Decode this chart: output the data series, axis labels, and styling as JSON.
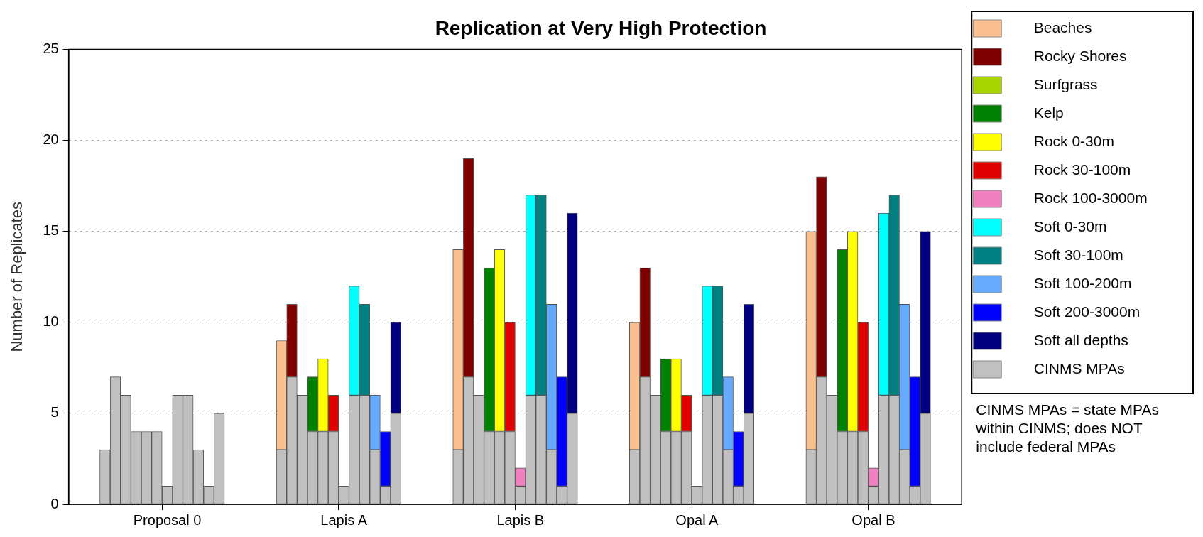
{
  "chart_data": {
    "type": "bar",
    "title": "Replication at Very High Protection",
    "ylabel": "Number of Replicates",
    "categories": [
      null,
      null,
      null,
      null,
      null,
      null,
      null,
      null,
      null,
      "Proposal 0",
      null,
      null,
      null,
      null,
      null,
      null,
      null,
      null,
      null,
      null,
      null,
      null,
      null,
      null,
      null,
      null,
      "Lapis A",
      null,
      null,
      null,
      null,
      null,
      null,
      null,
      null,
      null,
      null,
      null,
      null,
      null,
      null,
      null,
      null,
      "Lapis B",
      null,
      null,
      null,
      null,
      null,
      null,
      null,
      null,
      null,
      null,
      null,
      null,
      null,
      null,
      null,
      null,
      "Opal A",
      null,
      null,
      null,
      null,
      null,
      null,
      null,
      null,
      null,
      null,
      null,
      null,
      null,
      null,
      null,
      null,
      "Opal B",
      null,
      null,
      null,
      null,
      null,
      null,
      null,
      null
    ],
    "ylim": [
      0,
      25
    ],
    "yticks": [
      0,
      5,
      10,
      15,
      20,
      25
    ],
    "grid": "y",
    "stacked": true,
    "legend": "right",
    "annotations": [
      "CINMS MPAs = state MPAs within CINMS; does NOT include federal MPAs"
    ],
    "series": [
      {
        "name": "CINMS MPAs",
        "color": "#c0c0c0",
        "values": [
          null,
          null,
          null,
          3,
          7,
          6,
          4,
          4,
          4,
          1,
          6,
          6,
          3,
          1,
          5,
          null,
          null,
          null,
          null,
          null,
          3,
          7,
          6,
          4,
          4,
          4,
          1,
          6,
          6,
          3,
          1,
          5,
          null,
          null,
          null,
          null,
          null,
          3,
          7,
          6,
          4,
          4,
          4,
          1,
          6,
          6,
          3,
          1,
          5,
          null,
          null,
          null,
          null,
          null,
          3,
          7,
          6,
          4,
          4,
          4,
          1,
          6,
          6,
          3,
          1,
          5,
          null,
          null,
          null,
          null,
          null,
          3,
          7,
          6,
          4,
          4,
          4,
          1,
          6,
          6,
          3,
          1,
          5,
          null,
          null,
          null
        ]
      },
      {
        "name": "Beaches",
        "color": "#fac090",
        "values": [
          null,
          null,
          null,
          null,
          null,
          null,
          null,
          null,
          null,
          null,
          null,
          null,
          null,
          null,
          null,
          null,
          null,
          null,
          null,
          null,
          6,
          null,
          null,
          null,
          null,
          null,
          null,
          null,
          null,
          null,
          null,
          null,
          null,
          null,
          null,
          null,
          null,
          11,
          null,
          null,
          null,
          null,
          null,
          null,
          null,
          null,
          null,
          null,
          null,
          null,
          null,
          null,
          null,
          null,
          7,
          null,
          null,
          null,
          null,
          null,
          null,
          null,
          null,
          null,
          null,
          null,
          null,
          null,
          null,
          null,
          null,
          12,
          null,
          null,
          null,
          null,
          null,
          null,
          null,
          null,
          null,
          null,
          null,
          null,
          null,
          null
        ]
      },
      {
        "name": "Rocky Shores",
        "color": "#800000",
        "values": [
          null,
          null,
          null,
          null,
          null,
          null,
          null,
          null,
          null,
          null,
          null,
          null,
          null,
          null,
          null,
          null,
          null,
          null,
          null,
          null,
          null,
          4,
          null,
          null,
          null,
          null,
          null,
          null,
          null,
          null,
          null,
          null,
          null,
          null,
          null,
          null,
          null,
          null,
          12,
          null,
          null,
          null,
          null,
          null,
          null,
          null,
          null,
          null,
          null,
          null,
          null,
          null,
          null,
          null,
          null,
          6,
          null,
          null,
          null,
          null,
          null,
          null,
          null,
          null,
          null,
          null,
          null,
          null,
          null,
          null,
          null,
          null,
          11,
          null,
          null,
          null,
          null,
          null,
          null,
          null,
          null,
          null,
          null,
          null,
          null,
          null
        ]
      },
      {
        "name": "Surfgrass",
        "color": "#a8d400",
        "values": [
          null,
          null,
          null,
          null,
          null,
          null,
          null,
          null,
          null,
          null,
          null,
          null,
          null,
          null,
          null,
          null,
          null,
          null,
          null,
          null,
          null,
          null,
          null,
          null,
          null,
          null,
          null,
          null,
          null,
          null,
          null,
          null,
          null,
          null,
          null,
          null,
          null,
          null,
          null,
          null,
          null,
          null,
          null,
          null,
          null,
          null,
          null,
          null,
          null,
          null,
          null,
          null,
          null,
          null,
          null,
          null,
          null,
          null,
          null,
          null,
          null,
          null,
          null,
          null,
          null,
          null,
          null,
          null,
          null,
          null,
          null,
          null,
          null,
          null,
          null,
          null,
          null,
          null,
          null,
          null,
          null,
          null,
          null,
          null,
          null,
          null
        ]
      },
      {
        "name": "Kelp",
        "color": "#008000",
        "values": [
          null,
          null,
          null,
          null,
          null,
          null,
          null,
          null,
          null,
          null,
          null,
          null,
          null,
          null,
          null,
          null,
          null,
          null,
          null,
          null,
          null,
          null,
          null,
          3,
          null,
          null,
          null,
          null,
          null,
          null,
          null,
          null,
          null,
          null,
          null,
          null,
          null,
          null,
          null,
          null,
          9,
          null,
          null,
          null,
          null,
          null,
          null,
          null,
          null,
          null,
          null,
          null,
          null,
          null,
          null,
          null,
          null,
          4,
          null,
          null,
          null,
          null,
          null,
          null,
          null,
          null,
          null,
          null,
          null,
          null,
          null,
          null,
          null,
          null,
          10,
          null,
          null,
          null,
          null,
          null,
          null,
          null,
          null,
          null,
          null,
          null
        ]
      },
      {
        "name": "Rock 0-30m",
        "color": "#ffff00",
        "values": [
          null,
          null,
          null,
          null,
          null,
          null,
          null,
          null,
          null,
          null,
          null,
          null,
          null,
          null,
          null,
          null,
          null,
          null,
          null,
          null,
          null,
          null,
          null,
          null,
          4,
          null,
          null,
          null,
          null,
          null,
          null,
          null,
          null,
          null,
          null,
          null,
          null,
          null,
          null,
          null,
          null,
          10,
          null,
          null,
          null,
          null,
          null,
          null,
          null,
          null,
          null,
          null,
          null,
          null,
          null,
          null,
          null,
          null,
          4,
          null,
          null,
          null,
          null,
          null,
          null,
          null,
          null,
          null,
          null,
          null,
          null,
          null,
          null,
          null,
          null,
          11,
          null,
          null,
          null,
          null,
          null,
          null,
          null,
          null,
          null,
          null
        ]
      },
      {
        "name": "Rock 30-100m",
        "color": "#e00000",
        "values": [
          null,
          null,
          null,
          null,
          null,
          null,
          null,
          null,
          null,
          null,
          null,
          null,
          null,
          null,
          null,
          null,
          null,
          null,
          null,
          null,
          null,
          null,
          null,
          null,
          null,
          2,
          null,
          null,
          null,
          null,
          null,
          null,
          null,
          null,
          null,
          null,
          null,
          null,
          null,
          null,
          null,
          null,
          6,
          null,
          null,
          null,
          null,
          null,
          null,
          null,
          null,
          null,
          null,
          null,
          null,
          null,
          null,
          null,
          null,
          2,
          null,
          null,
          null,
          null,
          null,
          null,
          null,
          null,
          null,
          null,
          null,
          null,
          null,
          null,
          null,
          null,
          6,
          null,
          null,
          null,
          null,
          null,
          null,
          null,
          null,
          null
        ]
      },
      {
        "name": "Rock 100-3000m",
        "color": "#f080c0",
        "values": [
          null,
          null,
          null,
          null,
          null,
          null,
          null,
          null,
          null,
          null,
          null,
          null,
          null,
          null,
          null,
          null,
          null,
          null,
          null,
          null,
          null,
          null,
          null,
          null,
          null,
          null,
          null,
          null,
          null,
          null,
          null,
          null,
          null,
          null,
          null,
          null,
          null,
          null,
          null,
          null,
          null,
          null,
          null,
          1,
          null,
          null,
          null,
          null,
          null,
          null,
          null,
          null,
          null,
          null,
          null,
          null,
          null,
          null,
          null,
          null,
          null,
          null,
          null,
          null,
          null,
          null,
          null,
          null,
          null,
          null,
          null,
          null,
          null,
          null,
          null,
          null,
          null,
          1,
          null,
          null,
          null,
          null,
          null,
          null,
          null,
          null
        ]
      },
      {
        "name": "Soft 0-30m",
        "color": "#00ffff",
        "values": [
          null,
          null,
          null,
          null,
          null,
          null,
          null,
          null,
          null,
          null,
          null,
          null,
          null,
          null,
          null,
          null,
          null,
          null,
          null,
          null,
          null,
          null,
          null,
          null,
          null,
          null,
          null,
          6,
          null,
          null,
          null,
          null,
          null,
          null,
          null,
          null,
          null,
          null,
          null,
          null,
          null,
          null,
          null,
          null,
          11,
          null,
          null,
          null,
          null,
          null,
          null,
          null,
          null,
          null,
          null,
          null,
          null,
          null,
          null,
          null,
          null,
          6,
          null,
          null,
          null,
          null,
          null,
          null,
          null,
          null,
          null,
          null,
          null,
          null,
          null,
          null,
          null,
          null,
          10,
          null,
          null,
          null,
          null,
          null,
          null,
          null
        ]
      },
      {
        "name": "Soft 30-100m",
        "color": "#008080",
        "values": [
          null,
          null,
          null,
          null,
          null,
          null,
          null,
          null,
          null,
          null,
          null,
          null,
          null,
          null,
          null,
          null,
          null,
          null,
          null,
          null,
          null,
          null,
          null,
          null,
          null,
          null,
          null,
          null,
          5,
          null,
          null,
          null,
          null,
          null,
          null,
          null,
          null,
          null,
          null,
          null,
          null,
          null,
          null,
          null,
          null,
          11,
          null,
          null,
          null,
          null,
          null,
          null,
          null,
          null,
          null,
          null,
          null,
          null,
          null,
          null,
          null,
          null,
          6,
          null,
          null,
          null,
          null,
          null,
          null,
          null,
          null,
          null,
          null,
          null,
          null,
          null,
          null,
          null,
          null,
          11,
          null,
          null,
          null,
          null,
          null,
          null
        ]
      },
      {
        "name": "Soft 100-200m",
        "color": "#66aaff",
        "values": [
          null,
          null,
          null,
          null,
          null,
          null,
          null,
          null,
          null,
          null,
          null,
          null,
          null,
          null,
          null,
          null,
          null,
          null,
          null,
          null,
          null,
          null,
          null,
          null,
          null,
          null,
          null,
          null,
          null,
          3,
          null,
          null,
          null,
          null,
          null,
          null,
          null,
          null,
          null,
          null,
          null,
          null,
          null,
          null,
          null,
          null,
          8,
          null,
          null,
          null,
          null,
          null,
          null,
          null,
          null,
          null,
          null,
          null,
          null,
          null,
          null,
          null,
          null,
          4,
          null,
          null,
          null,
          null,
          null,
          null,
          null,
          null,
          null,
          null,
          null,
          null,
          null,
          null,
          null,
          null,
          8,
          null,
          null,
          null,
          null,
          null
        ]
      },
      {
        "name": "Soft 200-3000m",
        "color": "#0000ff",
        "values": [
          null,
          null,
          null,
          null,
          null,
          null,
          null,
          null,
          null,
          null,
          null,
          null,
          null,
          null,
          null,
          null,
          null,
          null,
          null,
          null,
          null,
          null,
          null,
          null,
          null,
          null,
          null,
          null,
          null,
          null,
          3,
          null,
          null,
          null,
          null,
          null,
          null,
          null,
          null,
          null,
          null,
          null,
          null,
          null,
          null,
          null,
          null,
          6,
          null,
          null,
          null,
          null,
          null,
          null,
          null,
          null,
          null,
          null,
          null,
          null,
          null,
          null,
          null,
          null,
          3,
          null,
          null,
          null,
          null,
          null,
          null,
          null,
          null,
          null,
          null,
          null,
          null,
          null,
          null,
          null,
          null,
          6,
          null,
          null,
          null,
          null
        ]
      },
      {
        "name": "Soft all depths",
        "color": "#000080",
        "values": [
          null,
          null,
          null,
          null,
          null,
          null,
          null,
          null,
          null,
          null,
          null,
          null,
          null,
          null,
          null,
          null,
          null,
          null,
          null,
          null,
          null,
          null,
          null,
          null,
          null,
          null,
          null,
          null,
          null,
          null,
          null,
          5,
          null,
          null,
          null,
          null,
          null,
          null,
          null,
          null,
          null,
          null,
          null,
          null,
          null,
          null,
          null,
          null,
          11,
          null,
          null,
          null,
          null,
          null,
          null,
          null,
          null,
          null,
          null,
          null,
          null,
          null,
          null,
          null,
          null,
          6,
          null,
          null,
          null,
          null,
          null,
          null,
          null,
          null,
          null,
          null,
          null,
          null,
          null,
          null,
          null,
          null,
          10,
          null,
          null,
          null
        ]
      }
    ]
  }
}
